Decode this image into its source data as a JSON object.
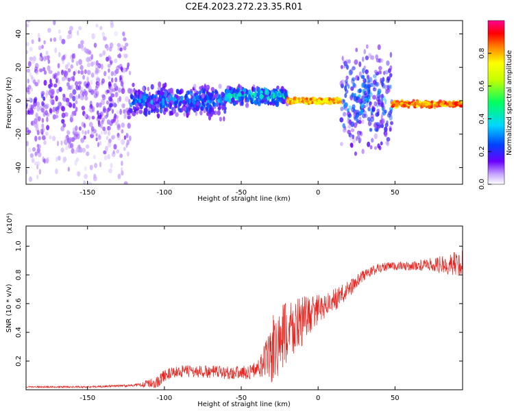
{
  "chart_data": [
    {
      "type": "heatmap",
      "title": "C2E4.2023.272.23.35.R01",
      "xlabel": "Height of straight line (km)",
      "ylabel": "Frequency (Hz)",
      "xlim": [
        -190,
        94
      ],
      "ylim": [
        -50,
        48
      ],
      "xticks": [
        -150,
        -100,
        -50,
        0,
        50
      ],
      "yticks": [
        -40,
        -20,
        0,
        20,
        40
      ],
      "colorbar": {
        "label": "Normalized spectral amplitude",
        "range": [
          0,
          1
        ],
        "ticks": [
          0.0,
          0.2,
          0.4,
          0.6,
          0.8
        ],
        "colormap": [
          "#ffffff",
          "#6a00ff",
          "#0050ff",
          "#00e0ff",
          "#00ff60",
          "#ffff00",
          "#ff8000",
          "#ff0000",
          "#ff00a0"
        ]
      },
      "regions": [
        {
          "x": [
            -190,
            -122
          ],
          "freq_center": 0,
          "freq_spread": 48,
          "amplitude": 0.15,
          "note": "diffuse noise"
        },
        {
          "x": [
            -122,
            -60
          ],
          "freq_center": 0,
          "freq_spread": 10,
          "amplitude": 0.3
        },
        {
          "x": [
            -60,
            -20
          ],
          "freq_center": 3,
          "freq_spread": 6,
          "amplitude": 0.45
        },
        {
          "x": [
            -20,
            15
          ],
          "freq_center": 0,
          "freq_spread": 2,
          "amplitude": 0.9
        },
        {
          "x": [
            15,
            48
          ],
          "freq_center": 0,
          "freq_spread": 30,
          "amplitude": 0.3
        },
        {
          "x": [
            48,
            94
          ],
          "freq_center": -2,
          "freq_spread": 2,
          "amplitude": 0.95
        }
      ]
    },
    {
      "type": "line",
      "xlabel": "Height of straight line (km)",
      "ylabel": "SNR (10 * v/v)",
      "multiplier": "(x10⁴)",
      "xlim": [
        -190,
        94
      ],
      "ylim": [
        0,
        1.14
      ],
      "xticks": [
        -150,
        -100,
        -50,
        0,
        50
      ],
      "yticks": [
        0.2,
        0.4,
        0.6,
        0.8,
        1.0
      ],
      "color": "#e8241f",
      "trend": {
        "x": [
          -190,
          -150,
          -120,
          -105,
          -100,
          -90,
          -60,
          -45,
          -38,
          -33,
          -30,
          -25,
          -20,
          -10,
          0,
          10,
          20,
          30,
          40,
          50,
          60,
          70,
          80,
          94
        ],
        "y": [
          0.02,
          0.02,
          0.03,
          0.05,
          0.1,
          0.13,
          0.12,
          0.12,
          0.16,
          0.22,
          0.26,
          0.32,
          0.4,
          0.48,
          0.56,
          0.62,
          0.7,
          0.8,
          0.85,
          0.86,
          0.86,
          0.87,
          0.87,
          0.88
        ]
      },
      "noise_amplitude": {
        "x": [
          -190,
          -120,
          -105,
          -40,
          -35,
          -30,
          -20,
          0,
          30,
          60,
          75,
          94
        ],
        "y": [
          0.005,
          0.008,
          0.04,
          0.05,
          0.12,
          0.25,
          0.25,
          0.1,
          0.04,
          0.03,
          0.05,
          0.1
        ]
      }
    }
  ]
}
